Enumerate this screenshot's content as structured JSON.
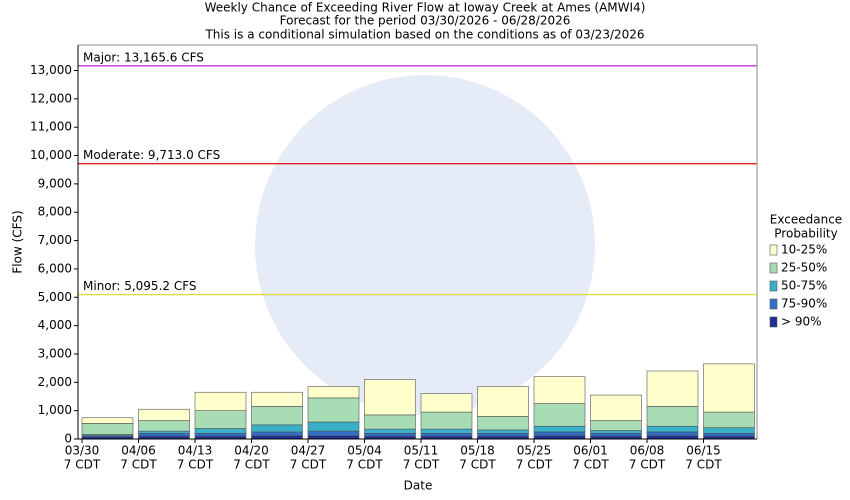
{
  "chart_data": {
    "type": "stacked-bar",
    "title": [
      "Weekly Chance of Exceeding River Flow at Ioway Creek at Ames (AMWI4)",
      "Forecast for the period 03/30/2026 - 06/28/2026",
      "This is a conditional simulation based on the conditions as of 03/23/2026"
    ],
    "x_label": "Date",
    "y_label": "Flow (CFS)",
    "legend_title": [
      "Exceedance",
      "Probability"
    ],
    "categories": [
      [
        "03/30",
        "7 CDT"
      ],
      [
        "04/06",
        "7 CDT"
      ],
      [
        "04/13",
        "7 CDT"
      ],
      [
        "04/20",
        "7 CDT"
      ],
      [
        "04/27",
        "7 CDT"
      ],
      [
        "05/04",
        "7 CDT"
      ],
      [
        "05/11",
        "7 CDT"
      ],
      [
        "05/18",
        "7 CDT"
      ],
      [
        "05/25",
        "7 CDT"
      ],
      [
        "06/01",
        "7 CDT"
      ],
      [
        "06/08",
        "7 CDT"
      ],
      [
        "06/15",
        "7 CDT"
      ]
    ],
    "series": [
      {
        "name": "> 90%",
        "color": "#1f2f8f",
        "values": [
          80,
          100,
          100,
          120,
          120,
          100,
          100,
          100,
          120,
          100,
          120,
          100
        ]
      },
      {
        "name": "75-90%",
        "color": "#2f6fc8",
        "values": [
          40,
          100,
          100,
          130,
          160,
          100,
          100,
          100,
          130,
          100,
          130,
          100
        ]
      },
      {
        "name": "50-75%",
        "color": "#3ab0c8",
        "values": [
          40,
          80,
          170,
          250,
          320,
          150,
          150,
          120,
          200,
          100,
          200,
          200
        ]
      },
      {
        "name": "25-50%",
        "color": "#a8dcb4",
        "values": [
          390,
          370,
          630,
          650,
          850,
          500,
          600,
          480,
          800,
          350,
          700,
          550
        ]
      },
      {
        "name": "10-25%",
        "color": "#ffffcc",
        "values": [
          200,
          400,
          650,
          500,
          400,
          1250,
          650,
          1050,
          950,
          900,
          1250,
          1700
        ]
      }
    ],
    "thresholds": [
      {
        "label": "Major: 13,165.6 CFS",
        "value": 13165.6,
        "color": "#cc33cc"
      },
      {
        "label": "Moderate: 9,713.0 CFS",
        "value": 9713.0,
        "color": "#dd2222"
      },
      {
        "label": "Minor: 5,095.2 CFS",
        "value": 5095.2,
        "color": "#e0da40"
      }
    ],
    "ylim": [
      0,
      13900
    ],
    "yticks": [
      0,
      {
        "value": 1000,
        "label": "1,000"
      },
      {
        "value": 2000,
        "label": "2,000"
      },
      {
        "value": 3000,
        "label": "3,000"
      },
      {
        "value": 4000,
        "label": "4,000"
      },
      {
        "value": 5000,
        "label": "5,000"
      },
      {
        "value": 6000,
        "label": "6,000"
      },
      {
        "value": 7000,
        "label": "7,000"
      },
      {
        "value": 8000,
        "label": "8,000"
      },
      {
        "value": 9000,
        "label": "9,000"
      },
      {
        "value": 10000,
        "label": "10,000"
      },
      {
        "value": 11000,
        "label": "11,000"
      },
      {
        "value": 12000,
        "label": "12,000"
      },
      {
        "value": 13000,
        "label": "13,000"
      }
    ]
  }
}
